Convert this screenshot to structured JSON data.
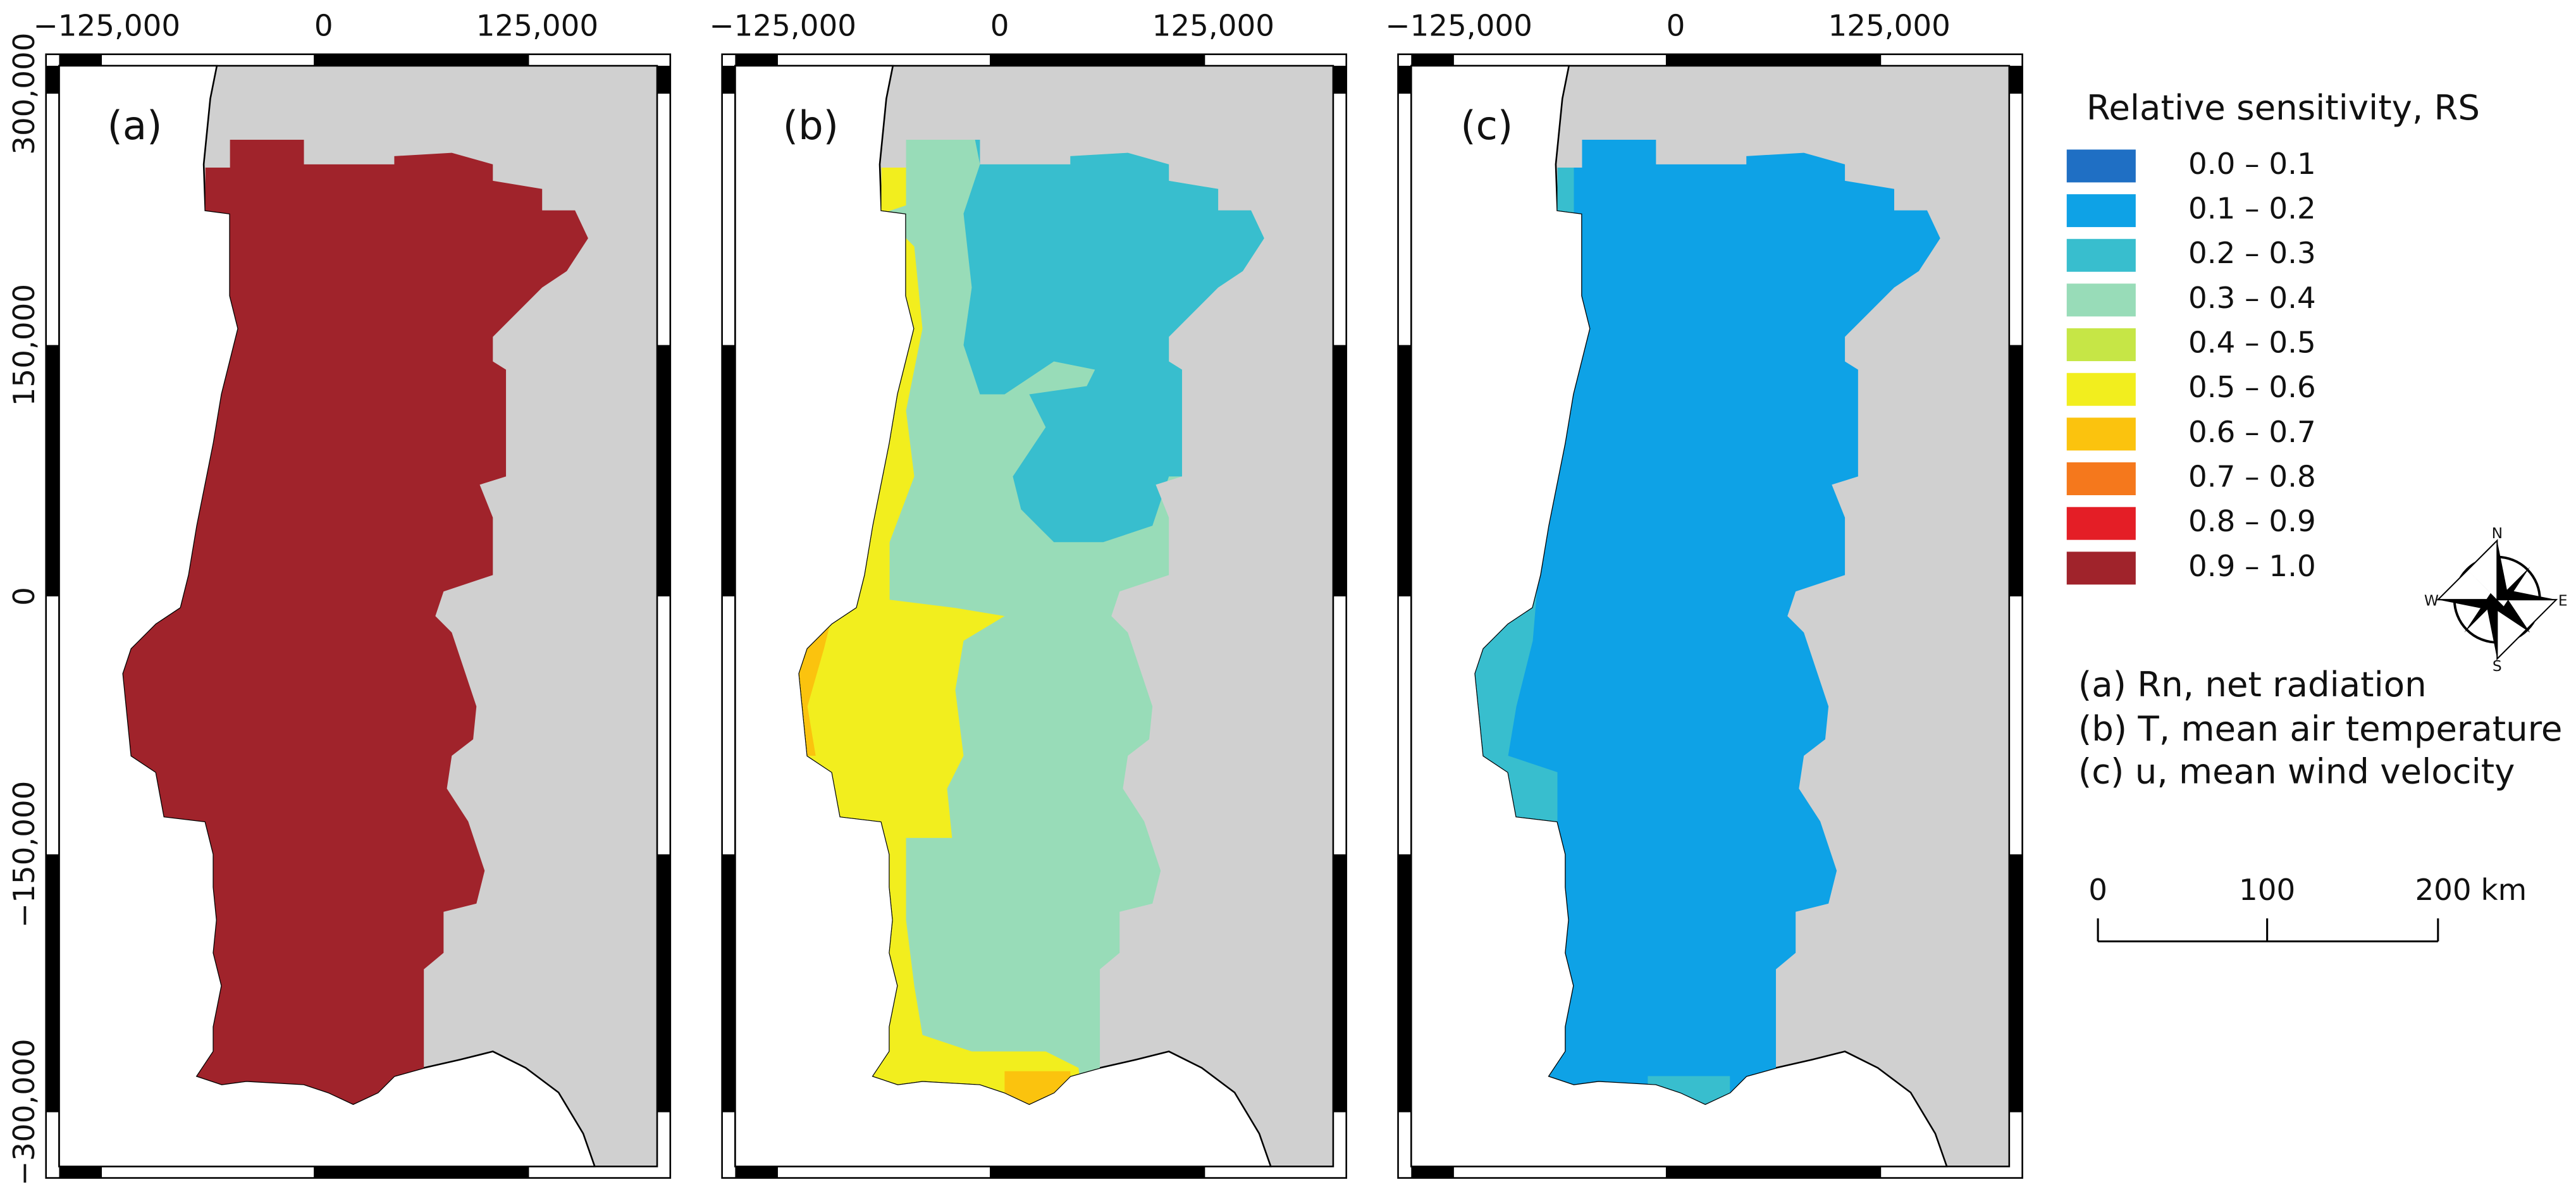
{
  "panels": [
    {
      "label": "(a)"
    },
    {
      "label": "(b)"
    },
    {
      "label": "(c)"
    }
  ],
  "x_ticks": [
    "−125,000",
    "0",
    "125,000"
  ],
  "y_ticks": [
    "300,000",
    "150,000",
    "0",
    "−150,000",
    "−300,000"
  ],
  "legend": {
    "title": "Relative sensitivity, RS",
    "items": [
      {
        "label": "0.0 – 0.1",
        "color": "#1f6fc4"
      },
      {
        "label": "0.1 – 0.2",
        "color": "#0ea2e6"
      },
      {
        "label": "0.2 – 0.3",
        "color": "#38bece"
      },
      {
        "label": "0.3 – 0.4",
        "color": "#98dcb8"
      },
      {
        "label": "0.4 – 0.5",
        "color": "#c6e646"
      },
      {
        "label": "0.5 – 0.6",
        "color": "#f2ee1e"
      },
      {
        "label": "0.6 – 0.7",
        "color": "#fbc30e"
      },
      {
        "label": "0.7 – 0.8",
        "color": "#f5781c"
      },
      {
        "label": "0.8 – 0.9",
        "color": "#e41e26"
      },
      {
        "label": "0.9 – 1.0",
        "color": "#a0232b"
      }
    ]
  },
  "compass": {
    "n": "N",
    "e": "E",
    "s": "S",
    "w": "W"
  },
  "descriptions": [
    "(a) Rn, net radiation",
    "(b) T, mean air temperature",
    "(c) u, mean wind velocity"
  ],
  "scale_bar": [
    "0",
    "100",
    "200 km"
  ]
}
